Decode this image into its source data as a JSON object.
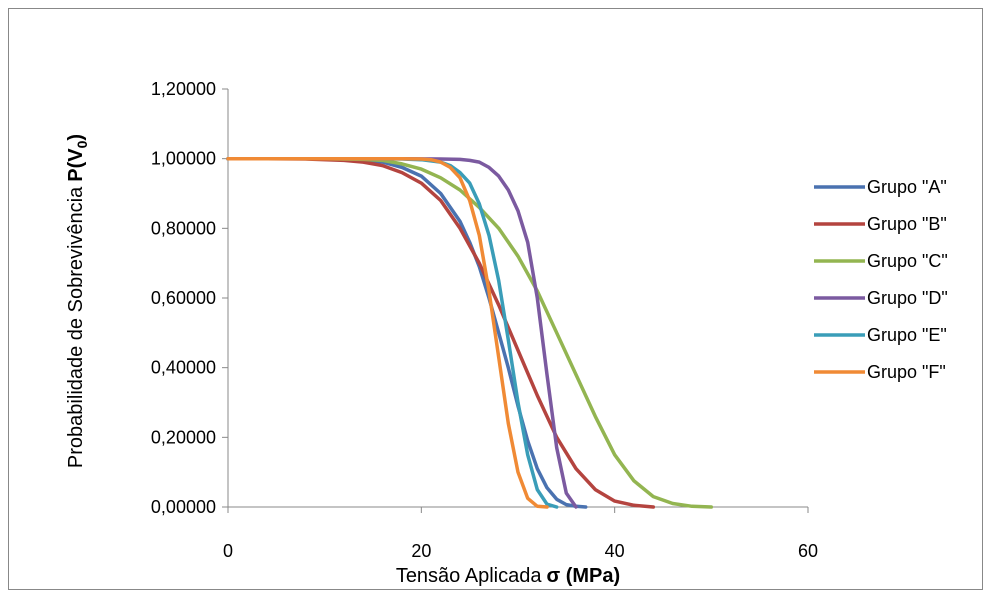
{
  "chart_data": {
    "type": "line",
    "title": "",
    "xlabel": "Tensão Aplicada",
    "xlabel_bold": "σ (MPa)",
    "ylabel": "Probabilidade de Sobrevivência",
    "ylabel_bold_main": "P(V",
    "ylabel_bold_sub": "0",
    "ylabel_bold_close": ")",
    "xlim": [
      0,
      60
    ],
    "ylim": [
      0,
      1.2
    ],
    "x_ticks": [
      0,
      20,
      40,
      60
    ],
    "x_tick_labels": [
      "0",
      "20",
      "40",
      "60"
    ],
    "y_ticks": [
      0,
      0.2,
      0.4,
      0.6,
      0.8,
      1.0,
      1.2
    ],
    "y_tick_labels": [
      "0,00000",
      "0,20000",
      "0,40000",
      "0,60000",
      "0,80000",
      "1,00000",
      "1,20000"
    ],
    "grid": false,
    "legend_position": "right",
    "series": [
      {
        "name": "Grupo \"A\"",
        "color": "#4A72B0",
        "x": [
          0,
          4,
          8,
          12,
          16,
          18,
          20,
          22,
          24,
          25,
          26,
          27,
          28,
          29,
          30,
          31,
          32,
          33,
          34,
          35,
          36,
          37
        ],
        "y": [
          1.0,
          1.0,
          1.0,
          0.998,
          0.99,
          0.975,
          0.95,
          0.9,
          0.82,
          0.76,
          0.69,
          0.6,
          0.5,
          0.4,
          0.29,
          0.19,
          0.11,
          0.055,
          0.022,
          0.007,
          0.002,
          0.0
        ]
      },
      {
        "name": "Grupo \"B\"",
        "color": "#B4443F",
        "x": [
          0,
          4,
          8,
          12,
          14,
          16,
          18,
          20,
          22,
          24,
          26,
          28,
          30,
          32,
          34,
          36,
          38,
          40,
          42,
          44
        ],
        "y": [
          1.0,
          1.0,
          0.999,
          0.995,
          0.99,
          0.98,
          0.96,
          0.93,
          0.88,
          0.8,
          0.7,
          0.58,
          0.45,
          0.32,
          0.2,
          0.11,
          0.05,
          0.017,
          0.005,
          0.0
        ]
      },
      {
        "name": "Grupo \"C\"",
        "color": "#93B551",
        "x": [
          0,
          6,
          10,
          14,
          16,
          18,
          20,
          22,
          24,
          26,
          28,
          30,
          32,
          34,
          36,
          38,
          40,
          42,
          44,
          46,
          48,
          50
        ],
        "y": [
          1.0,
          1.0,
          1.0,
          0.998,
          0.995,
          0.985,
          0.97,
          0.945,
          0.91,
          0.86,
          0.8,
          0.72,
          0.62,
          0.5,
          0.38,
          0.26,
          0.15,
          0.075,
          0.03,
          0.01,
          0.002,
          0.0
        ]
      },
      {
        "name": "Grupo \"D\"",
        "color": "#7B5AA0",
        "x": [
          0,
          10,
          18,
          22,
          24,
          25,
          26,
          27,
          28,
          29,
          30,
          31,
          32,
          33,
          34,
          35,
          36
        ],
        "y": [
          1.0,
          1.0,
          1.0,
          0.999,
          0.998,
          0.995,
          0.99,
          0.975,
          0.95,
          0.91,
          0.85,
          0.76,
          0.6,
          0.38,
          0.17,
          0.04,
          0.0
        ]
      },
      {
        "name": "Grupo \"E\"",
        "color": "#3A9DB8",
        "x": [
          0,
          10,
          18,
          20,
          22,
          23,
          24,
          25,
          26,
          27,
          28,
          29,
          30,
          31,
          32,
          33,
          34
        ],
        "y": [
          1.0,
          1.0,
          0.999,
          0.997,
          0.99,
          0.98,
          0.96,
          0.93,
          0.87,
          0.78,
          0.65,
          0.48,
          0.3,
          0.15,
          0.05,
          0.008,
          0.0
        ]
      },
      {
        "name": "Grupo \"F\"",
        "color": "#F08A35",
        "x": [
          0,
          10,
          18,
          20,
          21,
          22,
          23,
          24,
          25,
          26,
          27,
          28,
          29,
          30,
          31,
          32,
          33
        ],
        "y": [
          1.0,
          1.0,
          1.0,
          0.999,
          0.997,
          0.99,
          0.975,
          0.945,
          0.88,
          0.78,
          0.62,
          0.43,
          0.24,
          0.1,
          0.025,
          0.002,
          0.0
        ]
      }
    ]
  }
}
